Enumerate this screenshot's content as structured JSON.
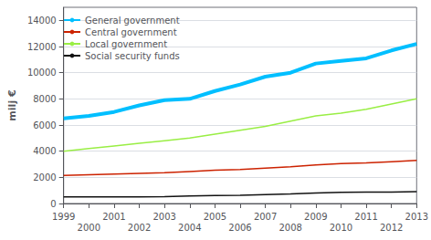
{
  "chart_data": {
    "type": "line",
    "y_label": "milj €",
    "x": [
      1999,
      2000,
      2001,
      2002,
      2003,
      2004,
      2005,
      2006,
      2007,
      2008,
      2009,
      2010,
      2011,
      2012,
      2013
    ],
    "series": [
      {
        "name": "General government",
        "color": "#00bfff",
        "values": [
          6500,
          6700,
          7000,
          7500,
          7900,
          8000,
          8600,
          9100,
          9700,
          10000,
          10700,
          10900,
          11100,
          11700,
          12200
        ]
      },
      {
        "name": "Central government",
        "color": "#cc2200",
        "values": [
          2150,
          2200,
          2250,
          2300,
          2350,
          2450,
          2550,
          2600,
          2700,
          2800,
          2950,
          3050,
          3100,
          3200,
          3300
        ]
      },
      {
        "name": "Local government",
        "color": "#99ee44",
        "values": [
          4000,
          4200,
          4400,
          4600,
          4800,
          5000,
          5300,
          5600,
          5900,
          6300,
          6700,
          6900,
          7200,
          7600,
          8000
        ]
      },
      {
        "name": "Social security funds",
        "color": "#111111",
        "values": [
          500,
          500,
          510,
          510,
          530,
          580,
          610,
          630,
          680,
          730,
          800,
          850,
          870,
          880,
          900
        ]
      }
    ],
    "xlim": [
      1999,
      2013
    ],
    "xticks": [
      1999,
      2000,
      2001,
      2002,
      2003,
      2004,
      2005,
      2006,
      2007,
      2008,
      2009,
      2010,
      2011,
      2012,
      2013
    ],
    "ylim": [
      0,
      15000
    ],
    "yticks": [
      0,
      2000,
      4000,
      6000,
      8000,
      10000,
      12000,
      14000
    ],
    "grid": true,
    "legend": "upper left"
  }
}
